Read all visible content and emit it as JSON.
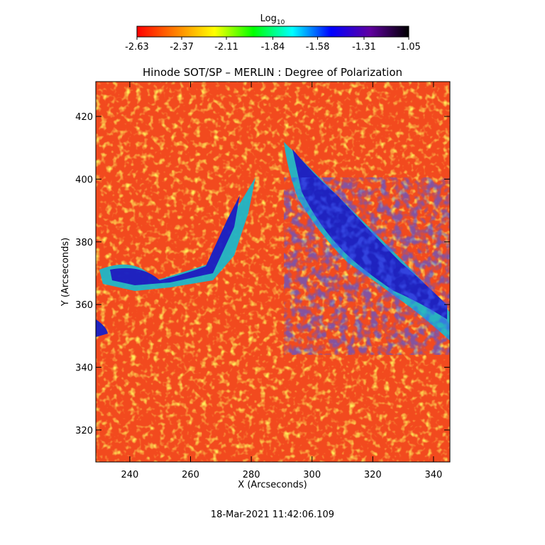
{
  "chart_data": {
    "type": "heatmap",
    "title": "Hinode SOT/SP – MERLIN : Degree of Polarization",
    "x_label": "X (Arcseconds)",
    "y_label": "Y (Arcseconds)",
    "xlim": [
      228.8,
      345.4
    ],
    "xticks": [
      240,
      260,
      280,
      300,
      320,
      340
    ],
    "ylim": [
      309.8,
      431.1
    ],
    "yticks": [
      320,
      340,
      360,
      380,
      400,
      420
    ],
    "colorbar": {
      "label": "Log",
      "label_subscript": "10",
      "clim": [
        -2.63,
        -1.05
      ],
      "ticks": [
        -2.63,
        -2.37,
        -2.11,
        -1.84,
        -1.58,
        -1.31,
        -1.05
      ],
      "colors": [
        "#ff0000",
        "#ff8000",
        "#ffff00",
        "#00ff00",
        "#00ffff",
        "#0000ff",
        "#6000a0",
        "#000000"
      ]
    },
    "footer": "18-Mar-2021 11:42:06.109"
  }
}
